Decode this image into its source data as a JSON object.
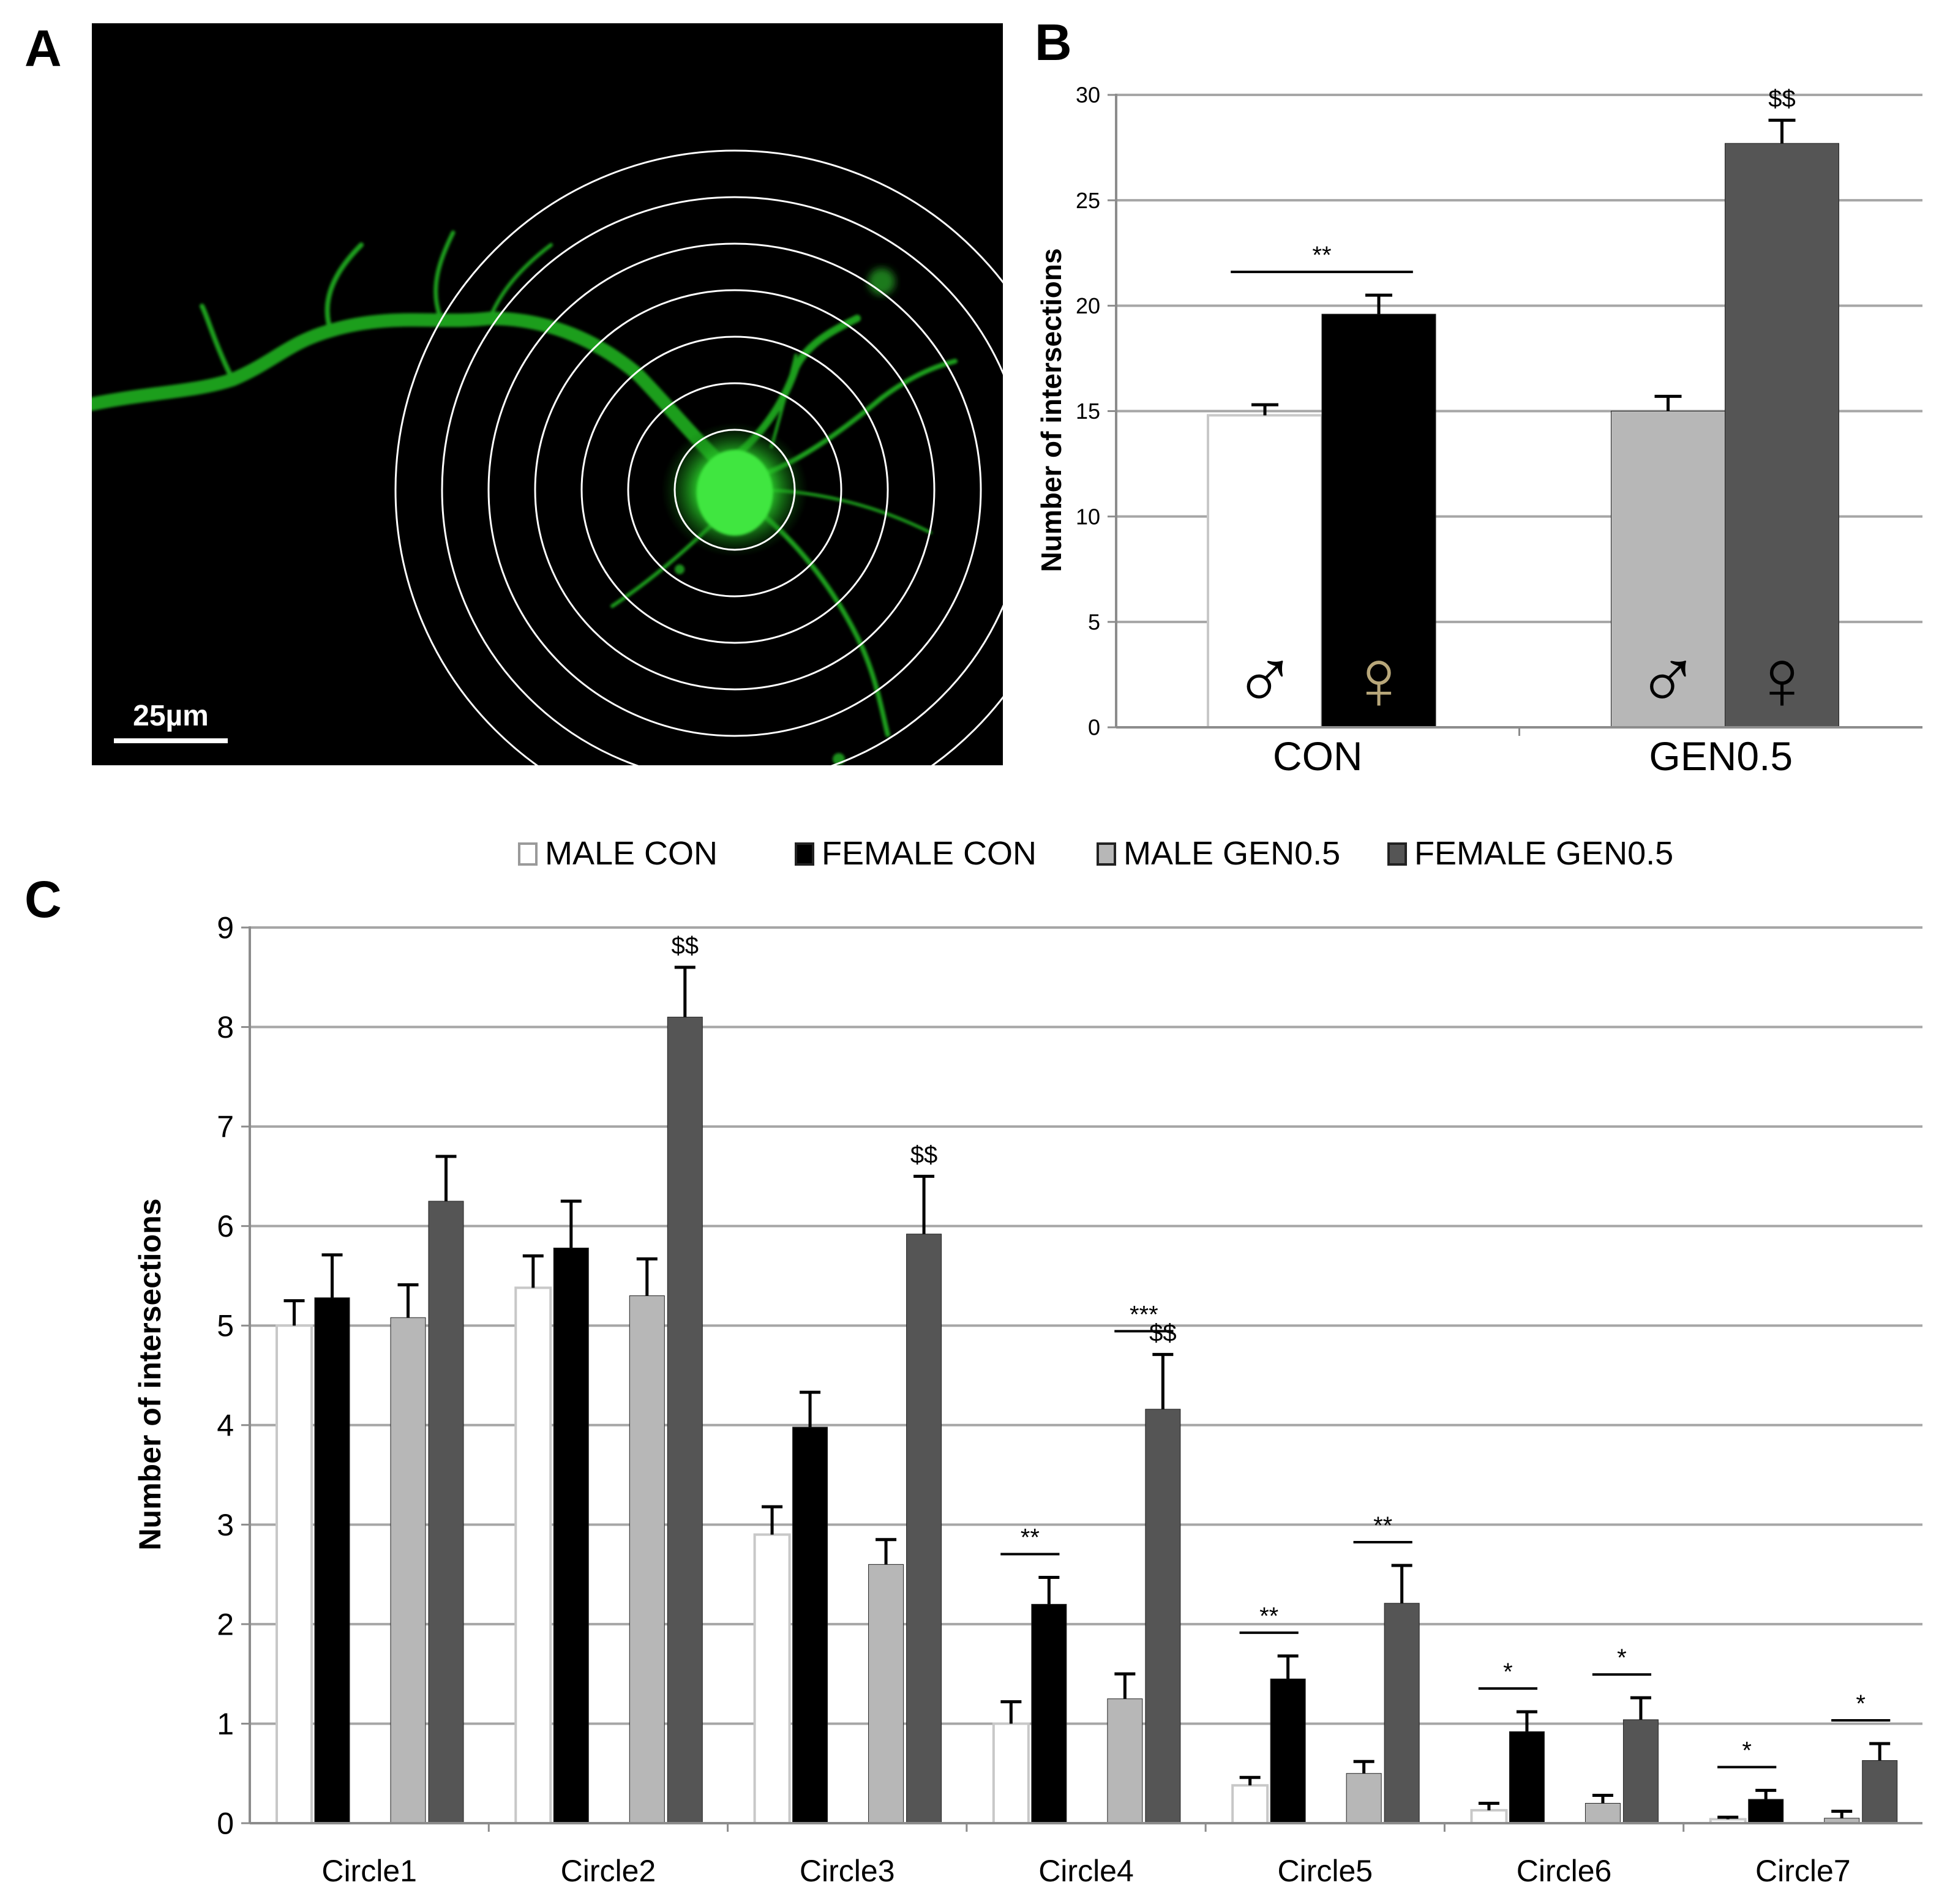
{
  "panels": {
    "a": {
      "label": "A",
      "scale_bar_label": "25µm",
      "ring_count": 7
    },
    "b": {
      "label": "B"
    },
    "c": {
      "label": "C"
    }
  },
  "chart_data": [
    {
      "id": "panel-b",
      "type": "bar",
      "title": "",
      "xlabel": "",
      "ylabel": "Number of intersections",
      "ylim": [
        0,
        30
      ],
      "yticks": [
        0,
        5,
        10,
        15,
        20,
        25,
        30
      ],
      "grid": true,
      "categories": [
        "CON",
        "GEN0.5"
      ],
      "series": [
        {
          "name": "MALE",
          "symbol": "♂",
          "colors": [
            "#ffffff",
            "#b7b7b7"
          ],
          "values": [
            14.8,
            15.0
          ],
          "errors": [
            0.5,
            0.7
          ]
        },
        {
          "name": "FEMALE",
          "symbol": "♀",
          "colors": [
            "#000000",
            "#555555"
          ],
          "values": [
            19.6,
            27.7
          ],
          "errors": [
            0.9,
            1.1
          ]
        }
      ],
      "annotations": [
        {
          "text": "**",
          "type": "bracket",
          "category": "CON",
          "between": [
            "MALE",
            "FEMALE"
          ]
        },
        {
          "text": "$$",
          "type": "above",
          "category": "GEN0.5",
          "series": "FEMALE"
        }
      ]
    },
    {
      "id": "panel-c",
      "type": "bar",
      "title": "",
      "xlabel": "",
      "ylabel": "Number of intersections",
      "ylim": [
        0,
        9
      ],
      "yticks": [
        0,
        1,
        2,
        3,
        4,
        5,
        6,
        7,
        8,
        9
      ],
      "grid": true,
      "legend_position": "top",
      "categories": [
        "Circle1",
        "Circle2",
        "Circle3",
        "Circle4",
        "Circle5",
        "Circle6",
        "Circle7"
      ],
      "series": [
        {
          "name": "MALE CON",
          "color": "#ffffff",
          "values": [
            5.0,
            5.38,
            2.9,
            1.0,
            0.38,
            0.13,
            0.04
          ],
          "errors": [
            0.25,
            0.32,
            0.28,
            0.22,
            0.08,
            0.07,
            0.02
          ]
        },
        {
          "name": "FEMALE CON",
          "color": "#000000",
          "values": [
            5.28,
            5.78,
            3.98,
            2.2,
            1.45,
            0.92,
            0.24
          ],
          "errors": [
            0.43,
            0.47,
            0.35,
            0.27,
            0.23,
            0.2,
            0.09
          ]
        },
        {
          "name": "MALE GEN0.5",
          "color": "#b7b7b7",
          "values": [
            5.08,
            5.3,
            2.6,
            1.25,
            0.5,
            0.2,
            0.05
          ],
          "errors": [
            0.33,
            0.37,
            0.25,
            0.25,
            0.12,
            0.08,
            0.07
          ]
        },
        {
          "name": "FEMALE GEN0.5",
          "color": "#555555",
          "values": [
            6.25,
            8.1,
            5.92,
            4.16,
            2.21,
            1.04,
            0.63
          ],
          "errors": [
            0.45,
            0.5,
            0.58,
            0.55,
            0.38,
            0.22,
            0.17
          ]
        }
      ],
      "annotations": [
        {
          "text": "$$",
          "type": "above",
          "category": "Circle2",
          "series": "FEMALE GEN0.5"
        },
        {
          "text": "$$",
          "type": "above",
          "category": "Circle3",
          "series": "FEMALE GEN0.5"
        },
        {
          "text": "***",
          "type": "bracket",
          "category": "Circle4",
          "between": [
            "MALE GEN0.5",
            "FEMALE GEN0.5"
          ]
        },
        {
          "text": "$$",
          "type": "above",
          "category": "Circle4",
          "series": "FEMALE GEN0.5"
        },
        {
          "text": "**",
          "type": "bracket",
          "category": "Circle4",
          "between": [
            "MALE CON",
            "FEMALE CON"
          ]
        },
        {
          "text": "**",
          "type": "bracket",
          "category": "Circle5",
          "between": [
            "MALE CON",
            "FEMALE CON"
          ]
        },
        {
          "text": "**",
          "type": "bracket",
          "category": "Circle5",
          "between": [
            "MALE GEN0.5",
            "FEMALE GEN0.5"
          ]
        },
        {
          "text": "*",
          "type": "bracket",
          "category": "Circle6",
          "between": [
            "MALE CON",
            "FEMALE CON"
          ]
        },
        {
          "text": "*",
          "type": "bracket",
          "category": "Circle6",
          "between": [
            "MALE GEN0.5",
            "FEMALE GEN0.5"
          ]
        },
        {
          "text": "*",
          "type": "bracket",
          "category": "Circle7",
          "between": [
            "MALE CON",
            "FEMALE CON"
          ]
        },
        {
          "text": "*",
          "type": "bracket",
          "category": "Circle7",
          "between": [
            "MALE GEN0.5",
            "FEMALE GEN0.5"
          ]
        }
      ]
    }
  ]
}
